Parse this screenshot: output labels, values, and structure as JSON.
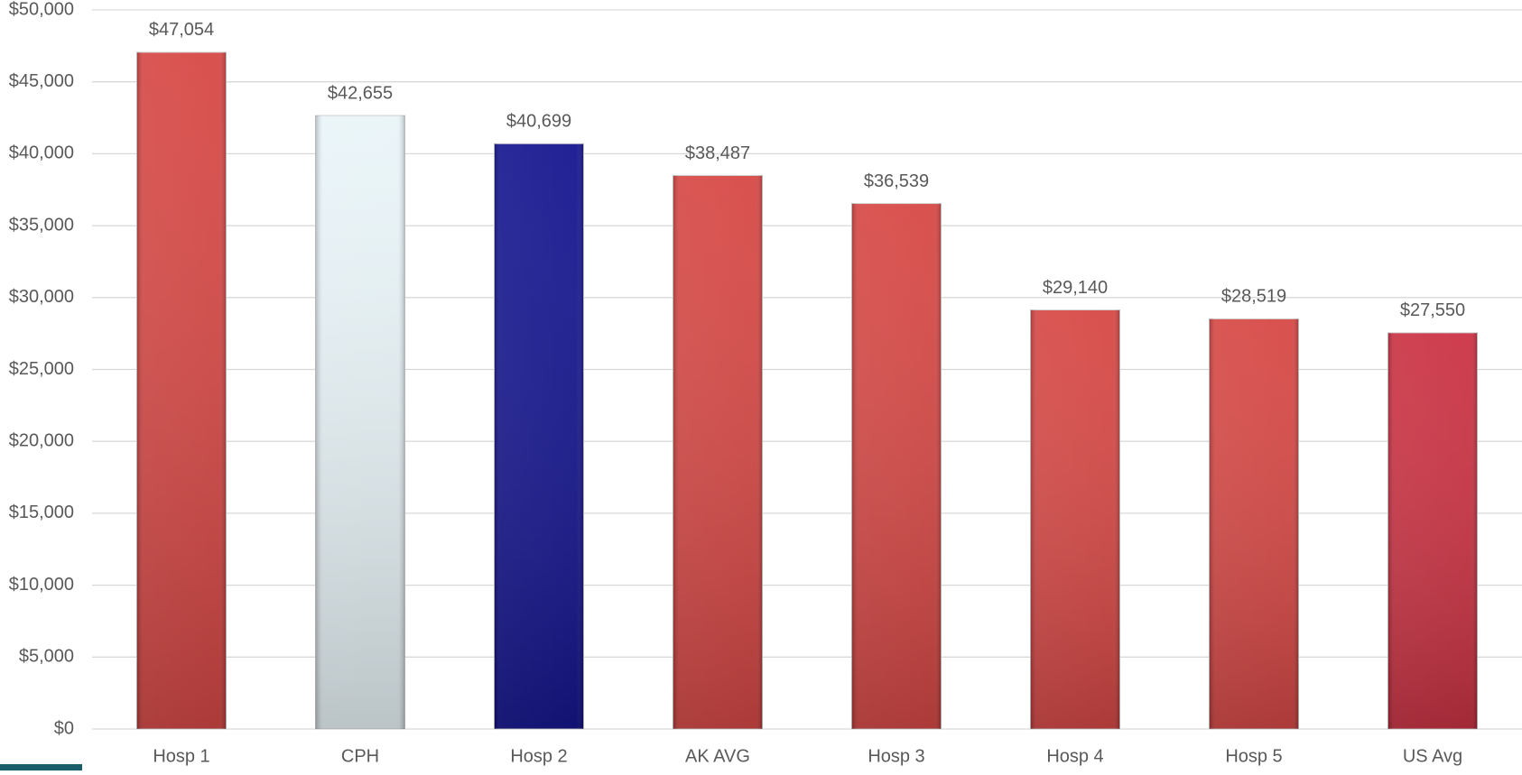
{
  "chart_data": {
    "type": "bar",
    "categories": [
      "Hosp 1",
      "CPH",
      "Hosp 2",
      "AK AVG",
      "Hosp 3",
      "Hosp 4",
      "Hosp 5",
      "US Avg"
    ],
    "values": [
      47054,
      42655,
      40699,
      38487,
      36539,
      29140,
      28519,
      27550
    ],
    "value_labels": [
      "$47,054",
      "$42,655",
      "$40,699",
      "$38,487",
      "$36,539",
      "$29,140",
      "$28,519",
      "$27,550"
    ],
    "colors": [
      "#d43f3c",
      "#e8f4f8",
      "#0a0a8a",
      "#d43f3c",
      "#d43f3c",
      "#d43f3c",
      "#d43f3c",
      "#c8283a"
    ],
    "ylim": [
      0,
      50000
    ],
    "yticks": [
      {
        "value": 0,
        "label": "$0"
      },
      {
        "value": 5000,
        "label": "$5,000"
      },
      {
        "value": 10000,
        "label": "$10,000"
      },
      {
        "value": 15000,
        "label": "$15,000"
      },
      {
        "value": 20000,
        "label": "$20,000"
      },
      {
        "value": 25000,
        "label": "$25,000"
      },
      {
        "value": 30000,
        "label": "$30,000"
      },
      {
        "value": 35000,
        "label": "$35,000"
      },
      {
        "value": 40000,
        "label": "$40,000"
      },
      {
        "value": 45000,
        "label": "$45,000"
      },
      {
        "value": 50000,
        "label": "$50,000"
      }
    ],
    "grid": true
  }
}
